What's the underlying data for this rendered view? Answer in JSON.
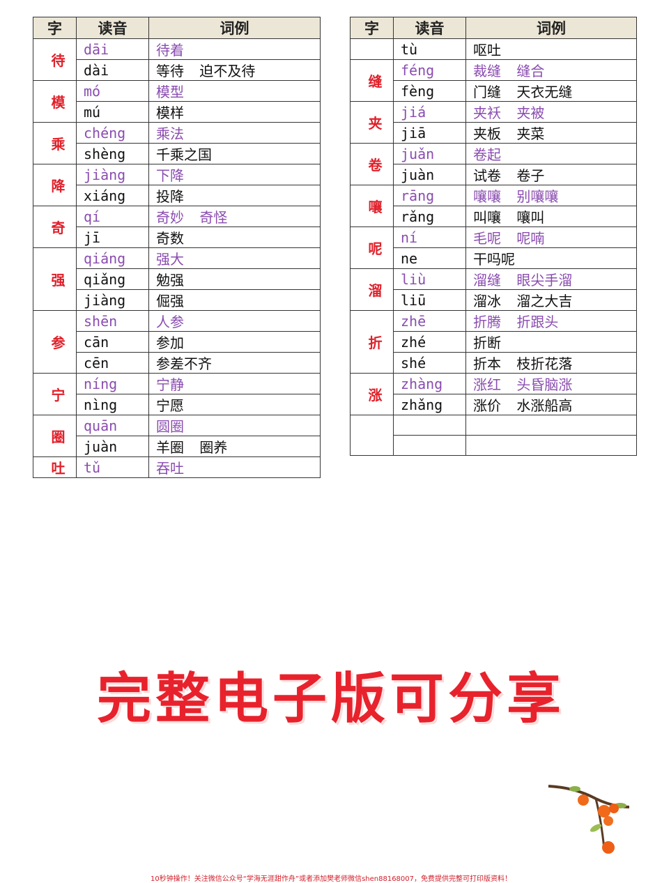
{
  "headers": [
    "字",
    "读音",
    "词例"
  ],
  "left_table": [
    {
      "char": "待",
      "readings": [
        {
          "pinyin": "dāi",
          "words": "待着"
        },
        {
          "pinyin": "dài",
          "words": "等待 迫不及待"
        }
      ]
    },
    {
      "char": "模",
      "readings": [
        {
          "pinyin": "mó",
          "words": "模型"
        },
        {
          "pinyin": "mú",
          "words": "模样"
        }
      ]
    },
    {
      "char": "乘",
      "readings": [
        {
          "pinyin": "chéng",
          "words": "乘法"
        },
        {
          "pinyin": "shèng",
          "words": "千乘之国"
        }
      ]
    },
    {
      "char": "降",
      "readings": [
        {
          "pinyin": "jiàng",
          "words": "下降"
        },
        {
          "pinyin": "xiáng",
          "words": "投降"
        }
      ]
    },
    {
      "char": "奇",
      "readings": [
        {
          "pinyin": "qí",
          "words": "奇妙 奇怪"
        },
        {
          "pinyin": "jī",
          "words": "奇数"
        }
      ]
    },
    {
      "char": "强",
      "readings": [
        {
          "pinyin": "qiáng",
          "words": "强大"
        },
        {
          "pinyin": "qiǎng",
          "words": "勉强"
        },
        {
          "pinyin": "jiàng",
          "words": "倔强"
        }
      ]
    },
    {
      "char": "参",
      "readings": [
        {
          "pinyin": "shēn",
          "words": "人参"
        },
        {
          "pinyin": "cān",
          "words": "参加"
        },
        {
          "pinyin": "cēn",
          "words": "参差不齐"
        }
      ]
    },
    {
      "char": "宁",
      "readings": [
        {
          "pinyin": "níng",
          "words": "宁静"
        },
        {
          "pinyin": "nìng",
          "words": "宁愿"
        }
      ]
    },
    {
      "char": "圈",
      "readings": [
        {
          "pinyin": "quān",
          "words": "圆圈"
        },
        {
          "pinyin": "juàn",
          "words": "羊圈 圈养"
        }
      ]
    },
    {
      "char": "吐",
      "readings": [
        {
          "pinyin": "tǔ",
          "words": "吞吐"
        }
      ]
    }
  ],
  "right_table": [
    {
      "char": "",
      "continued": true,
      "readings": [
        {
          "pinyin": "tù",
          "words": "呕吐"
        }
      ]
    },
    {
      "char": "缝",
      "readings": [
        {
          "pinyin": "féng",
          "words": "裁缝 缝合"
        },
        {
          "pinyin": "fèng",
          "words": "门缝 天衣无缝"
        }
      ]
    },
    {
      "char": "夹",
      "readings": [
        {
          "pinyin": "jiá",
          "words": "夹袄 夹被"
        },
        {
          "pinyin": "jiā",
          "words": "夹板 夹菜"
        }
      ]
    },
    {
      "char": "卷",
      "readings": [
        {
          "pinyin": "juǎn",
          "words": "卷起"
        },
        {
          "pinyin": "juàn",
          "words": "试卷 卷子"
        }
      ]
    },
    {
      "char": "嚷",
      "readings": [
        {
          "pinyin": "rāng",
          "words": "嚷嚷 别嚷嚷"
        },
        {
          "pinyin": "rǎng",
          "words": "叫嚷 嚷叫"
        }
      ]
    },
    {
      "char": "呢",
      "readings": [
        {
          "pinyin": "ní",
          "words": "毛呢 呢喃"
        },
        {
          "pinyin": "ne",
          "words": "干吗呢"
        }
      ]
    },
    {
      "char": "溜",
      "readings": [
        {
          "pinyin": "liù",
          "words": "溜缝 眼尖手溜"
        },
        {
          "pinyin": "liū",
          "words": "溜冰 溜之大吉"
        }
      ]
    },
    {
      "char": "折",
      "readings": [
        {
          "pinyin": "zhē",
          "words": "折腾 折跟头"
        },
        {
          "pinyin": "zhé",
          "words": "折断"
        },
        {
          "pinyin": "shé",
          "words": "折本 枝折花落"
        }
      ]
    },
    {
      "char": "涨",
      "readings": [
        {
          "pinyin": "zhàng",
          "words": "涨红 头昏脑涨"
        },
        {
          "pinyin": "zhǎng",
          "words": "涨价 水涨船高"
        }
      ]
    },
    {
      "char": "",
      "continued": true,
      "readings": [
        {
          "pinyin": "",
          "words": ""
        },
        {
          "pinyin": "",
          "words": ""
        }
      ]
    }
  ],
  "banner": "完整电子版可分享",
  "footer": "10秒钟操作！关注微信公众号“学海无涯甜作舟”或者添加樊老师微信shen88168007，免费提供完整可打印版资料！",
  "colors": {
    "char": "#e0202a",
    "primary_reading": "#8a4cb0",
    "header_bg": "#ece6d6",
    "banner": "#e8222c"
  },
  "decoration": "persimmon-branch-icon"
}
